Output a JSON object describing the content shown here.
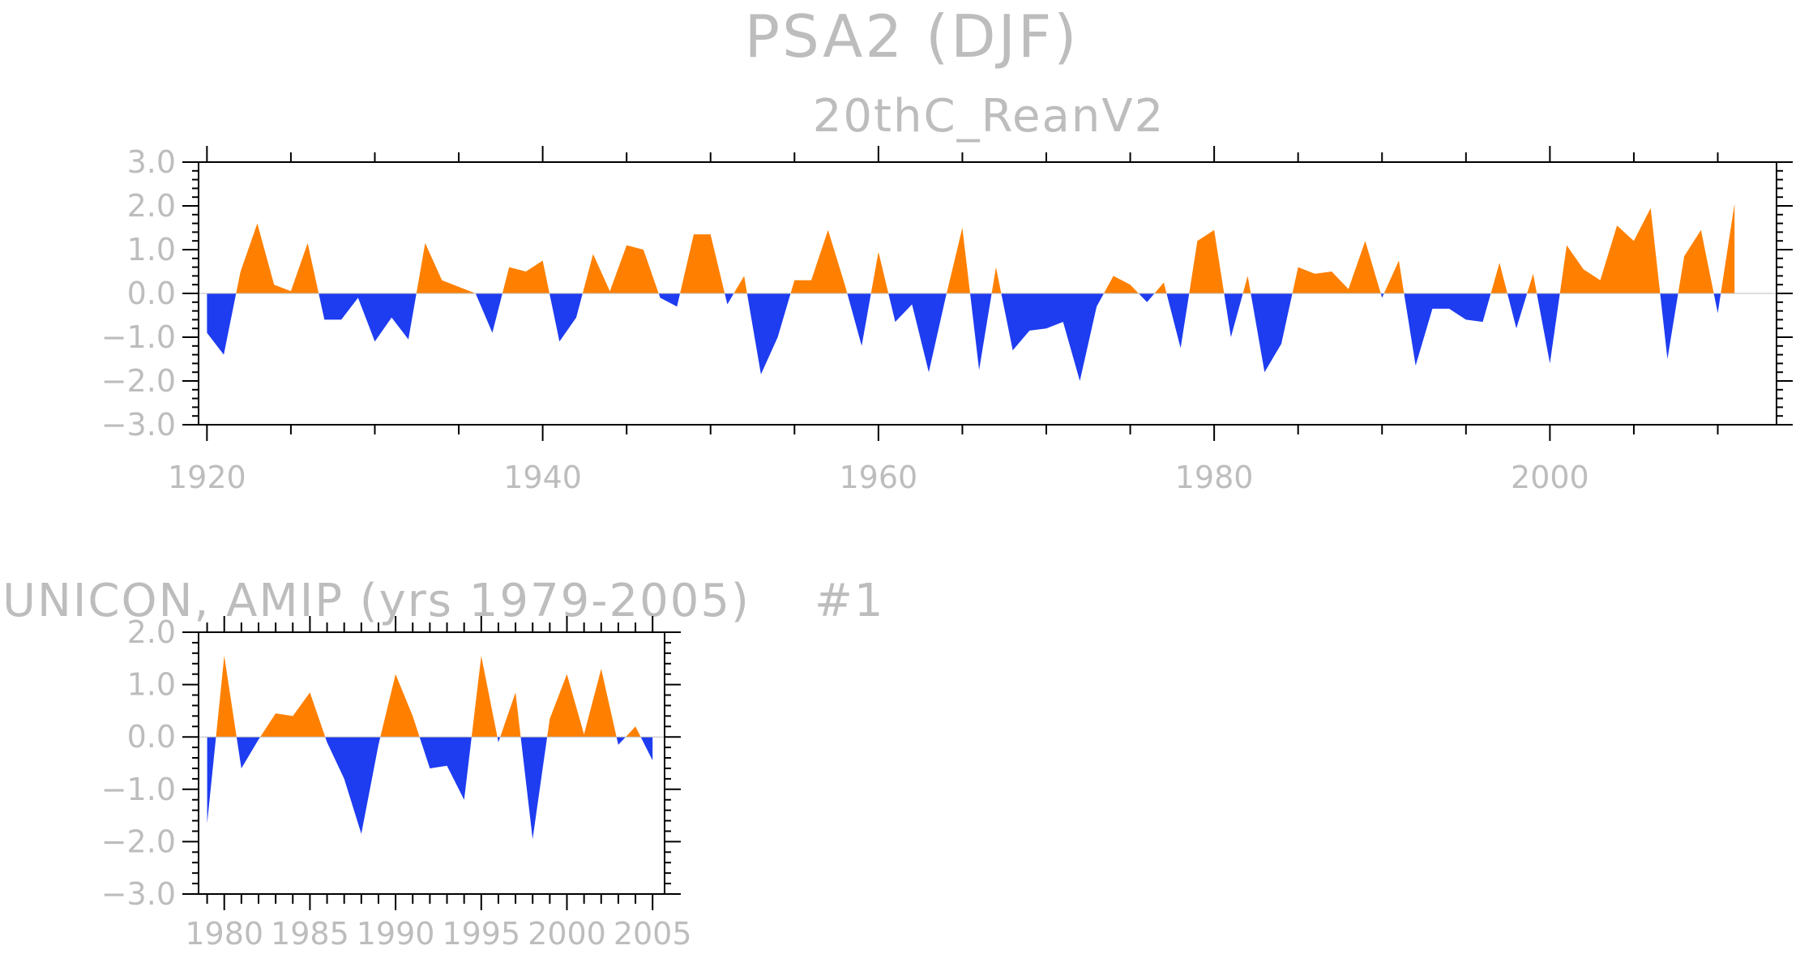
{
  "title": "PSA2 (DJF)",
  "colors": {
    "positive": "#ff8000",
    "negative": "#1e3cf0",
    "text": "#bdbdbd",
    "axis": "#000000"
  },
  "chart_data": [
    {
      "type": "area",
      "title": "20thC_ReanV2",
      "xlabel": "",
      "ylabel": "",
      "xlim": [
        1919.5,
        2013.5
      ],
      "ylim": [
        -3,
        3
      ],
      "yticks": [
        "3.0",
        "2.0",
        "1.0",
        "0.0",
        "−1.0",
        "−2.0",
        "−3.0"
      ],
      "xticks": [
        "1920",
        "1940",
        "1960",
        "1980",
        "2000"
      ],
      "x": [
        1920,
        1921,
        1922,
        1923,
        1924,
        1925,
        1926,
        1927,
        1928,
        1929,
        1930,
        1931,
        1932,
        1933,
        1934,
        1935,
        1936,
        1937,
        1938,
        1939,
        1940,
        1941,
        1942,
        1943,
        1944,
        1945,
        1946,
        1947,
        1948,
        1949,
        1950,
        1951,
        1952,
        1953,
        1954,
        1955,
        1956,
        1957,
        1958,
        1959,
        1960,
        1961,
        1962,
        1963,
        1964,
        1965,
        1966,
        1967,
        1968,
        1969,
        1970,
        1971,
        1972,
        1973,
        1974,
        1975,
        1976,
        1977,
        1978,
        1979,
        1980,
        1981,
        1982,
        1983,
        1984,
        1985,
        1986,
        1987,
        1988,
        1989,
        1990,
        1991,
        1992,
        1993,
        1994,
        1995,
        1996,
        1997,
        1998,
        1999,
        2000,
        2001,
        2002,
        2003,
        2004,
        2005,
        2006,
        2007,
        2008,
        2009,
        2010,
        2011
      ],
      "values": [
        -0.9,
        -1.4,
        0.5,
        1.6,
        0.2,
        0.05,
        1.15,
        -0.6,
        -0.6,
        -0.1,
        -1.1,
        -0.55,
        -1.05,
        1.15,
        0.3,
        0.15,
        0.0,
        -0.9,
        0.6,
        0.5,
        0.75,
        -1.1,
        -0.55,
        0.9,
        0.05,
        1.1,
        1.0,
        -0.1,
        -0.3,
        1.35,
        1.35,
        -0.25,
        0.4,
        -1.85,
        -1.0,
        0.3,
        0.3,
        1.45,
        0.2,
        -1.2,
        0.95,
        -0.65,
        -0.25,
        -1.8,
        -0.1,
        1.5,
        -1.75,
        0.6,
        -1.3,
        -0.85,
        -0.8,
        -0.65,
        -2.0,
        -0.3,
        0.4,
        0.2,
        -0.2,
        0.25,
        -1.25,
        1.2,
        1.45,
        -1.0,
        0.4,
        -1.8,
        -1.15,
        0.6,
        0.45,
        0.5,
        0.1,
        1.2,
        -0.1,
        0.75,
        -1.65,
        -0.35,
        -0.35,
        -0.6,
        -0.65,
        0.7,
        -0.8,
        0.45,
        -1.6,
        1.1,
        0.55,
        0.3,
        1.55,
        1.2,
        1.95,
        -1.5,
        0.85,
        1.45,
        -0.45,
        2.05
      ]
    },
    {
      "type": "area",
      "title": "UNICON, AMIP (yrs 1979-2005)",
      "label": "#1",
      "xlabel": "",
      "ylabel": "",
      "xlim": [
        1978.5,
        2005.7
      ],
      "ylim": [
        -3,
        2
      ],
      "yticks": [
        "2.0",
        "1.0",
        "0.0",
        "−1.0",
        "−2.0",
        "−3.0"
      ],
      "xticks": [
        "1980",
        "1985",
        "1990",
        "1995",
        "2000",
        "2005"
      ],
      "x": [
        1979,
        1980,
        1981,
        1982,
        1983,
        1984,
        1985,
        1986,
        1987,
        1988,
        1989,
        1990,
        1991,
        1992,
        1993,
        1994,
        1995,
        1996,
        1997,
        1998,
        1999,
        2000,
        2001,
        2002,
        2003,
        2004,
        2005
      ],
      "values": [
        -1.65,
        1.55,
        -0.6,
        -0.05,
        0.45,
        0.4,
        0.85,
        -0.1,
        -0.8,
        -1.85,
        -0.15,
        1.2,
        0.4,
        -0.6,
        -0.55,
        -1.2,
        1.55,
        -0.1,
        0.85,
        -1.95,
        0.35,
        1.2,
        0.05,
        1.3,
        -0.15,
        0.2,
        -0.45
      ]
    }
  ]
}
